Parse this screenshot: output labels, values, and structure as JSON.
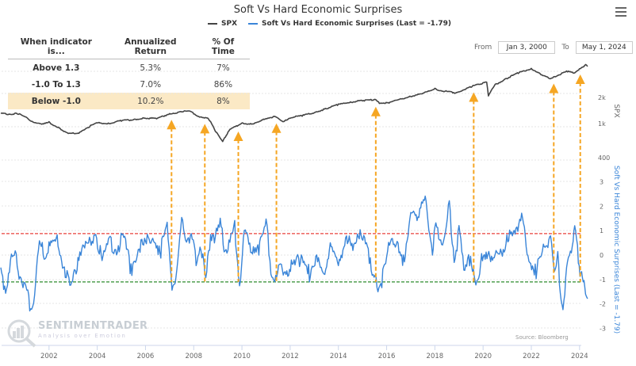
{
  "title": "Soft Vs Hard Economic Surprises",
  "menu_icon": "hamburger-menu-icon",
  "legend": [
    {
      "name": "SPX",
      "color": "#444444"
    },
    {
      "name": "Soft Vs Hard Economic Surprises (Last = -1.79)",
      "color": "#3a85d8"
    }
  ],
  "stats_table": {
    "headers": [
      "When indicator is...",
      "Annualized Return",
      "% Of Time"
    ],
    "rows": [
      {
        "label": "Above 1.3",
        "return": "5.3%",
        "time": "7%",
        "highlight": false
      },
      {
        "label": "-1.0 To 1.3",
        "return": "7.0%",
        "time": "86%",
        "highlight": false
      },
      {
        "label": "Below -1.0",
        "return": "10.2%",
        "time": "8%",
        "highlight": true
      }
    ],
    "highlight_color": "#fbe9c5"
  },
  "range": {
    "from_label": "From",
    "from": "Jan 3, 2000",
    "to_label": "To",
    "to": "May 1, 2024"
  },
  "source": "Source: Bloomberg",
  "watermark": {
    "title": "SENTIMENTRADER",
    "subtitle": "Analysis over Emotion"
  },
  "chart_data": {
    "type": "line",
    "title": "Soft Vs Hard Economic Surprises",
    "x_range": [
      2000.0,
      2024.35
    ],
    "x_ticks": [
      "2002",
      "2004",
      "2006",
      "2008",
      "2010",
      "2012",
      "2014",
      "2016",
      "2018",
      "2020",
      "2022",
      "2024"
    ],
    "axes": {
      "spx": {
        "label": "SPX",
        "scale": "log",
        "ticks": [
          "2k",
          "1k",
          "400"
        ],
        "tick_values": [
          2000,
          1000,
          400
        ]
      },
      "surprises": {
        "label": "Soft Vs Hard Economic Surprises (Last = -1.79)",
        "ticks": [
          "3",
          "2",
          "1",
          "0",
          "-1",
          "-2",
          "-3"
        ],
        "tick_values": [
          3,
          2,
          1,
          0,
          -1,
          -2,
          -3
        ],
        "range": [
          -3,
          3
        ]
      }
    },
    "series": [
      {
        "name": "SPX",
        "color": "#444444",
        "x": [
          2000.0,
          2000.3,
          2000.7,
          2001.0,
          2001.3,
          2001.7,
          2002.0,
          2002.5,
          2002.8,
          2003.2,
          2003.6,
          2004.0,
          2004.5,
          2005.0,
          2005.5,
          2006.0,
          2006.5,
          2007.0,
          2007.5,
          2007.8,
          2008.2,
          2008.6,
          2008.9,
          2009.2,
          2009.5,
          2010.0,
          2010.4,
          2010.7,
          2011.0,
          2011.4,
          2011.7,
          2012.0,
          2012.5,
          2013.0,
          2013.5,
          2014.0,
          2014.5,
          2015.0,
          2015.5,
          2015.7,
          2016.1,
          2016.5,
          2017.0,
          2017.5,
          2018.0,
          2018.3,
          2018.9,
          2019.0,
          2019.5,
          2020.0,
          2020.15,
          2020.22,
          2020.5,
          2021.0,
          2021.5,
          2022.0,
          2022.4,
          2022.8,
          2023.0,
          2023.5,
          2023.8,
          2024.0,
          2024.25,
          2024.33
        ],
        "values": [
          1455,
          1430,
          1450,
          1320,
          1180,
          1080,
          1150,
          950,
          850,
          860,
          1000,
          1130,
          1120,
          1200,
          1230,
          1280,
          1270,
          1440,
          1520,
          1550,
          1350,
          1280,
          900,
          700,
          940,
          1120,
          1100,
          1150,
          1280,
          1340,
          1150,
          1300,
          1370,
          1480,
          1650,
          1840,
          1960,
          2050,
          2100,
          1920,
          1930,
          2100,
          2280,
          2450,
          2800,
          2650,
          2500,
          2600,
          2950,
          3250,
          3380,
          2300,
          3100,
          3700,
          4300,
          4770,
          4100,
          3600,
          3900,
          4450,
          4200,
          4770,
          5250,
          5050
        ]
      },
      {
        "name": "Soft Vs Hard Economic Surprises",
        "color": "#3a85d8",
        "x": [
          2000.0,
          2000.2,
          2000.4,
          2000.6,
          2000.8,
          2001.0,
          2001.2,
          2001.4,
          2001.6,
          2001.8,
          2002.0,
          2002.3,
          2002.6,
          2002.9,
          2003.2,
          2003.4,
          2003.6,
          2003.9,
          2004.2,
          2004.5,
          2004.8,
          2005.1,
          2005.4,
          2005.7,
          2006.0,
          2006.3,
          2006.6,
          2006.9,
          2007.1,
          2007.3,
          2007.5,
          2007.7,
          2007.9,
          2008.1,
          2008.3,
          2008.5,
          2008.7,
          2008.9,
          2009.1,
          2009.3,
          2009.5,
          2009.7,
          2009.9,
          2010.1,
          2010.4,
          2010.7,
          2011.0,
          2011.2,
          2011.4,
          2011.6,
          2011.9,
          2012.2,
          2012.5,
          2012.8,
          2013.1,
          2013.4,
          2013.7,
          2014.0,
          2014.3,
          2014.6,
          2014.9,
          2015.2,
          2015.4,
          2015.6,
          2015.8,
          2016.0,
          2016.2,
          2016.4,
          2016.7,
          2017.0,
          2017.3,
          2017.6,
          2017.9,
          2018.0,
          2018.2,
          2018.4,
          2018.6,
          2018.8,
          2019.0,
          2019.2,
          2019.4,
          2019.6,
          2019.7,
          2019.9,
          2020.2,
          2020.5,
          2020.8,
          2021.1,
          2021.4,
          2021.6,
          2021.9,
          2022.2,
          2022.5,
          2022.8,
          2023.0,
          2023.1,
          2023.2,
          2023.35,
          2023.5,
          2023.7,
          2023.8,
          2023.95,
          2024.05,
          2024.15,
          2024.25,
          2024.33
        ],
        "values": [
          -0.7,
          -1.3,
          -0.3,
          -0.1,
          -0.8,
          -1.2,
          -2.1,
          -1.6,
          0.5,
          0.1,
          0.3,
          0.6,
          -0.3,
          -1.5,
          -0.1,
          0.6,
          0.3,
          1.0,
          -0.2,
          0.5,
          0.3,
          0.7,
          -0.6,
          0.3,
          0.4,
          0.9,
          0.1,
          1.1,
          -1.3,
          -0.8,
          1.5,
          0.8,
          0.6,
          -0.1,
          0.5,
          -1.2,
          0.9,
          0.8,
          1.2,
          0.3,
          0.5,
          1.1,
          -1.2,
          0.8,
          0.4,
          0.3,
          1.3,
          -0.5,
          -1.1,
          -0.4,
          -0.6,
          -0.5,
          0.1,
          -0.8,
          -0.3,
          -0.6,
          0.3,
          -0.5,
          0.9,
          0.1,
          1.0,
          0.7,
          -1.1,
          -1.2,
          -1.1,
          -0.2,
          1.0,
          0.3,
          -0.3,
          1.9,
          1.3,
          2.7,
          0.0,
          1.0,
          0.9,
          0.6,
          2.1,
          -0.1,
          0.9,
          -0.5,
          0.1,
          -0.9,
          -1.2,
          -0.3,
          -0.2,
          0.3,
          -0.2,
          0.9,
          1.2,
          1.4,
          0.0,
          -0.7,
          0.1,
          0.9,
          -0.8,
          -0.1,
          -1.3,
          -2.2,
          -0.2,
          0.6,
          0.9,
          0.0,
          -0.9,
          -1.1,
          -1.3,
          -1.79
        ]
      }
    ],
    "threshold_lines": [
      {
        "name": "upper",
        "value": 0.88,
        "color": "#e8413c",
        "style": "dashed"
      },
      {
        "name": "lower",
        "value": -1.1,
        "color": "#2e8b2e",
        "style": "dashed"
      }
    ],
    "signal_arrows": {
      "color": "#f5a623",
      "dates": [
        2007.08,
        2008.46,
        2009.85,
        2011.43,
        2015.55,
        2019.61,
        2022.93,
        2024.03
      ]
    },
    "grid": true
  }
}
